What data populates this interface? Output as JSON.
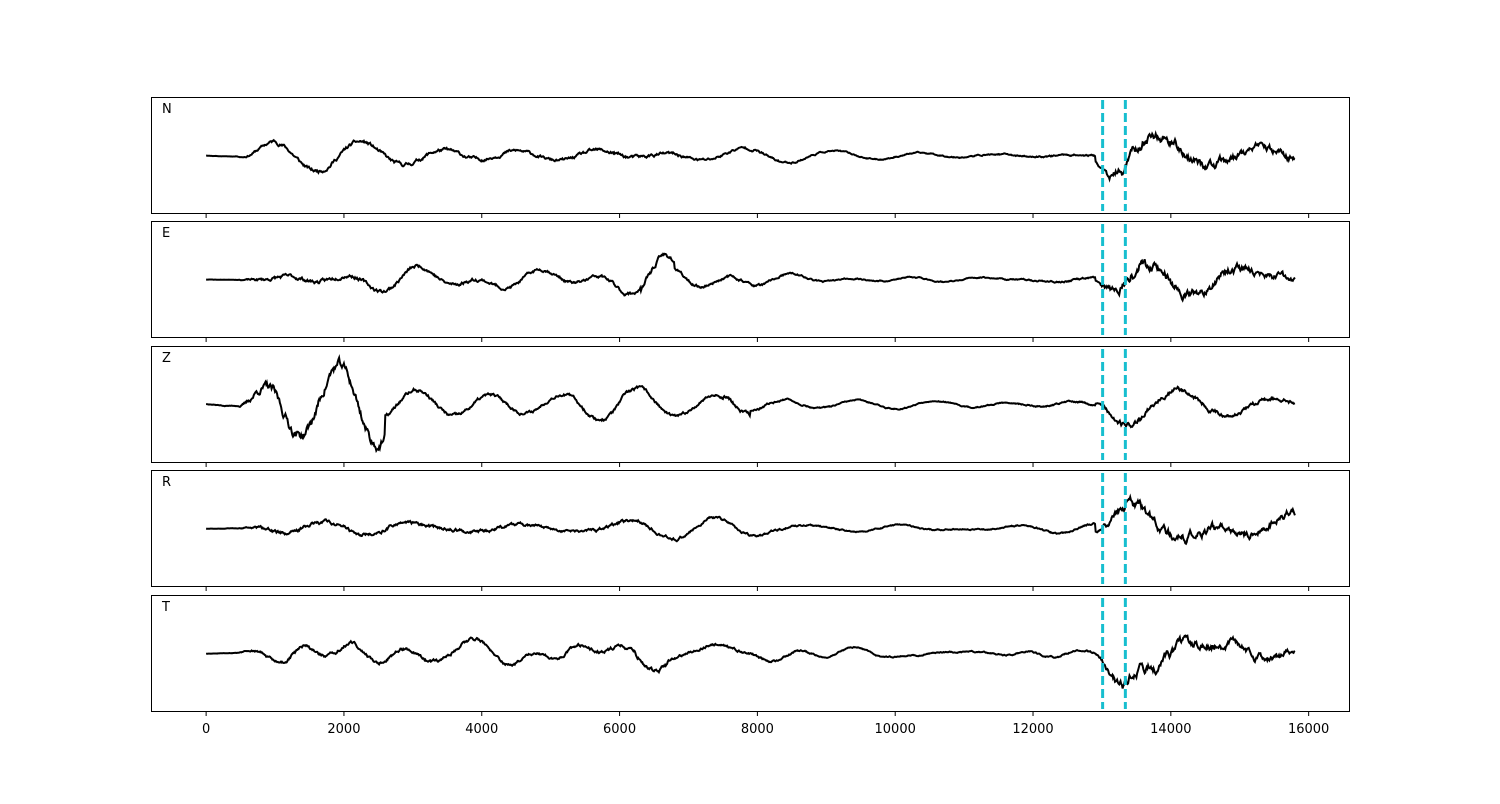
{
  "chart_data": {
    "type": "line",
    "subplots": [
      {
        "label": "N"
      },
      {
        "label": "E"
      },
      {
        "label": "Z"
      },
      {
        "label": "R"
      },
      {
        "label": "T"
      }
    ],
    "sample_count": 15800,
    "xlim": [
      -800,
      16600
    ],
    "xticks": [
      0,
      2000,
      4000,
      6000,
      8000,
      10000,
      12000,
      14000,
      16000
    ],
    "xtick_labels": [
      "0",
      "2000",
      "4000",
      "6000",
      "8000",
      "10000",
      "12000",
      "14000",
      "16000"
    ],
    "vlines": [
      {
        "x": 13010,
        "style": "dashed"
      },
      {
        "x": 13340,
        "style": "dashed"
      }
    ],
    "trace_envelope": [
      {
        "x": 0,
        "amp": 0.02
      },
      {
        "x": 450,
        "amp": 0.03
      },
      {
        "x": 700,
        "amp": 0.2
      },
      {
        "x": 1000,
        "amp": 0.3
      },
      {
        "x": 2000,
        "amp": 0.3
      },
      {
        "x": 3500,
        "amp": 0.28
      },
      {
        "x": 5000,
        "amp": 0.22
      },
      {
        "x": 6000,
        "amp": 0.3
      },
      {
        "x": 7000,
        "amp": 0.22
      },
      {
        "x": 8000,
        "amp": 0.2
      },
      {
        "x": 9000,
        "amp": 0.1
      },
      {
        "x": 10000,
        "amp": 0.1
      },
      {
        "x": 11000,
        "amp": 0.1
      },
      {
        "x": 12000,
        "amp": 0.12
      },
      {
        "x": 12900,
        "amp": 0.15
      },
      {
        "x": 13100,
        "amp": 0.6
      },
      {
        "x": 13300,
        "amp": 0.9
      },
      {
        "x": 14000,
        "amp": 0.75
      },
      {
        "x": 15000,
        "amp": 0.6
      },
      {
        "x": 15800,
        "amp": 0.55
      }
    ],
    "colors": {
      "trace": "#000000",
      "vline": "#17becf",
      "axes": "#000000"
    },
    "grid": false,
    "legend": "none"
  }
}
